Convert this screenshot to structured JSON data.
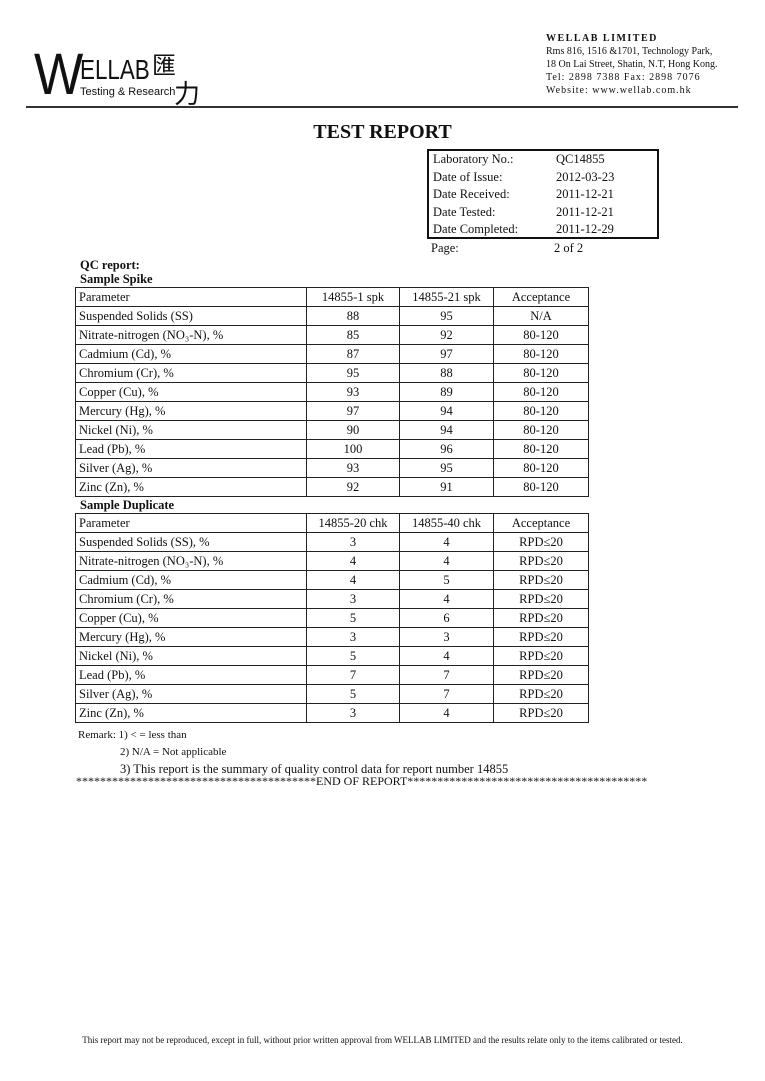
{
  "header": {
    "logo_letter": "W",
    "logo_name": "ELLAB",
    "logo_chinese": "匯",
    "logo_chinese2": "力",
    "logo_sub": "Testing & Research",
    "company": "WELLAB LIMITED",
    "address1": "Rms 816, 1516 &1701, Technology Park,",
    "address2": "18 On Lai Street, Shatin, N.T, Hong Kong.",
    "phone": "Tel: 2898 7388   Fax: 2898 7076",
    "website": "Website: www.wellab.com.hk"
  },
  "title": "TEST REPORT",
  "info": [
    [
      "Laboratory No.:",
      "QC14855"
    ],
    [
      "Date of Issue:",
      "2012-03-23"
    ],
    [
      "Date Received:",
      "2011-12-21"
    ],
    [
      "Date Tested:",
      "2011-12-21"
    ],
    [
      "Date Completed:",
      "2011-12-29"
    ]
  ],
  "page": {
    "label": "Page:",
    "value": "2 of 2"
  },
  "qc_label": "QC report:",
  "spike": {
    "label": "Sample Spike",
    "headers": [
      "Parameter",
      "14855-1 spk",
      "14855-21 spk",
      "Acceptance"
    ],
    "rows": [
      [
        "Suspended Solids (SS)",
        "88",
        "95",
        "N/A"
      ],
      [
        "Nitrate-nitrogen (NO₃-N), %",
        "85",
        "92",
        "80-120"
      ],
      [
        "Cadmium (Cd), %",
        "87",
        "97",
        "80-120"
      ],
      [
        "Chromium (Cr), %",
        "95",
        "88",
        "80-120"
      ],
      [
        "Copper (Cu), %",
        "93",
        "89",
        "80-120"
      ],
      [
        "Mercury (Hg), %",
        "97",
        "94",
        "80-120"
      ],
      [
        "Nickel (Ni), %",
        "90",
        "94",
        "80-120"
      ],
      [
        "Lead (Pb), %",
        "100",
        "96",
        "80-120"
      ],
      [
        "Silver (Ag), %",
        "93",
        "95",
        "80-120"
      ],
      [
        "Zinc (Zn), %",
        "92",
        "91",
        "80-120"
      ]
    ]
  },
  "duplicate": {
    "label": "Sample Duplicate",
    "headers": [
      "Parameter",
      "14855-20 chk",
      "14855-40 chk",
      "Acceptance"
    ],
    "rows": [
      [
        "Suspended Solids (SS), %",
        "3",
        "4",
        "RPD≤20"
      ],
      [
        "Nitrate-nitrogen (NO₃-N), %",
        "4",
        "4",
        "RPD≤20"
      ],
      [
        "Cadmium (Cd), %",
        "4",
        "5",
        "RPD≤20"
      ],
      [
        "Chromium (Cr), %",
        "3",
        "4",
        "RPD≤20"
      ],
      [
        "Copper (Cu), %",
        "5",
        "6",
        "RPD≤20"
      ],
      [
        "Mercury (Hg), %",
        "3",
        "3",
        "RPD≤20"
      ],
      [
        "Nickel (Ni), %",
        "5",
        "4",
        "RPD≤20"
      ],
      [
        "Lead (Pb), %",
        "7",
        "7",
        "RPD≤20"
      ],
      [
        "Silver (Ag), %",
        "5",
        "7",
        "RPD≤20"
      ],
      [
        "Zinc (Zn), %",
        "3",
        "4",
        "RPD≤20"
      ]
    ]
  },
  "remarks": [
    "Remark: 1) < = less than",
    "2) N/A = Not applicable",
    "3) This report is the summary of quality control data for report number 14855"
  ],
  "end_marker": "****************************************END OF REPORT****************************************",
  "footer": "This report may not be reproduced, except in full, without prior written approval from WELLAB LIMITED and the results relate only to the items calibrated or tested."
}
